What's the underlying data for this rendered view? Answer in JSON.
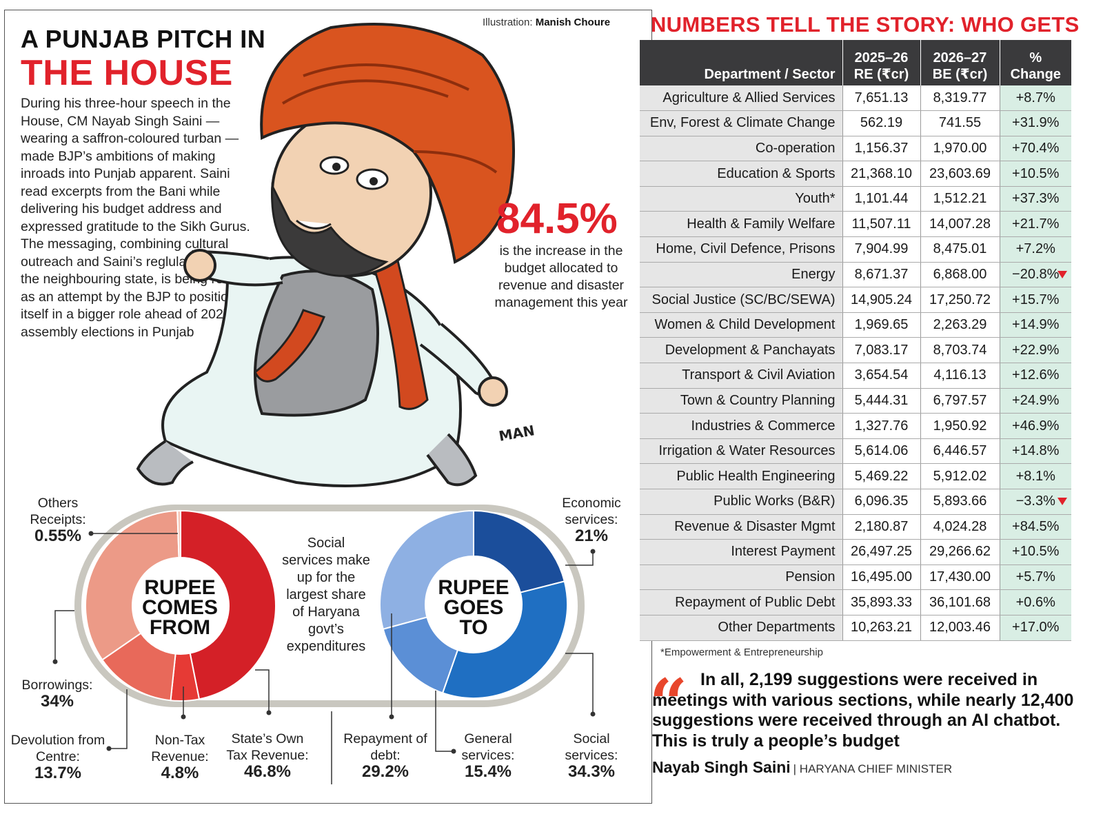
{
  "credit": {
    "prefix": "Illustration:",
    "name": "Manish Choure"
  },
  "headline": {
    "line1": "A PUNJAB PITCH IN",
    "line2": "THE HOUSE"
  },
  "intro": "During his three-hour speech in the House, CM Nayab Singh Saini — wearing a saffron-coloured turban — made BJP’s ambitions of making inroads into Punjab apparent. Saini read excerpts from the Bani while delivering his budget address and expressed gratitude to the Sikh Gurus. The messaging, combining cultural outreach and Saini’s reglular visits to the neighbouring state, is being read as an attempt by the BJP to position itself in a bigger role ahead of 2027 assembly elections in Punjab",
  "highlight": {
    "value": "84.5%",
    "caption": "is the increase in the budget allocated to revenue and disaster management this year"
  },
  "cartoon_signature": "MAN",
  "middle_note": "Social services make up for the largest share of Haryana govt’s expenditures",
  "colors": {
    "accent": "#e1222b",
    "comes_from": [
      "#d42027",
      "#e63a35",
      "#e8695a",
      "#ec9a87",
      "#f5c9bb"
    ],
    "goes_to": [
      "#1b4e9b",
      "#1f6fc2",
      "#5b8fd6",
      "#8eb0e3"
    ]
  },
  "chart_data": [
    {
      "type": "pie",
      "center_label": [
        "RUPEE",
        "COMES",
        "FROM"
      ],
      "slices": [
        {
          "label": "State’s Own Tax Revenue:",
          "value": 46.8,
          "display": "46.8%"
        },
        {
          "label": "Non-Tax Revenue:",
          "value": 4.8,
          "display": "4.8%"
        },
        {
          "label": "Devolution from Centre:",
          "value": 13.7,
          "display": "13.7%"
        },
        {
          "label": "Borrowings:",
          "value": 34,
          "display": "34%"
        },
        {
          "label": "Others Receipts:",
          "value": 0.55,
          "display": "0.55%"
        }
      ]
    },
    {
      "type": "pie",
      "center_label": [
        "RUPEE",
        "GOES",
        "TO"
      ],
      "slices": [
        {
          "label": "Economic services:",
          "value": 21,
          "display": "21%"
        },
        {
          "label": "Social services:",
          "value": 34.3,
          "display": "34.3%"
        },
        {
          "label": "General services:",
          "value": 15.4,
          "display": "15.4%"
        },
        {
          "label": "Repayment of debt:",
          "value": 29.2,
          "display": "29.2%"
        }
      ]
    },
    {
      "type": "table",
      "title": "NUMBERS TELL THE STORY: WHO GETS WHAT",
      "columns": [
        "Department / Sector",
        "2025–26 RE (₹cr)",
        "2026–27 BE (₹cr)",
        "% Change"
      ],
      "rows": [
        {
          "dept": "Agriculture & Allied Services",
          "re": "7,651.13",
          "be": "8,319.77",
          "chg": "+8.7%",
          "down": false
        },
        {
          "dept": "Env, Forest & Climate Change",
          "re": "562.19",
          "be": "741.55",
          "chg": "+31.9%",
          "down": false
        },
        {
          "dept": "Co-operation",
          "re": "1,156.37",
          "be": "1,970.00",
          "chg": "+70.4%",
          "down": false
        },
        {
          "dept": "Education & Sports",
          "re": "21,368.10",
          "be": "23,603.69",
          "chg": "+10.5%",
          "down": false
        },
        {
          "dept": "Youth*",
          "re": "1,101.44",
          "be": "1,512.21",
          "chg": "+37.3%",
          "down": false
        },
        {
          "dept": "Health & Family Welfare",
          "re": "11,507.11",
          "be": "14,007.28",
          "chg": "+21.7%",
          "down": false
        },
        {
          "dept": "Home, Civil Defence, Prisons",
          "re": "7,904.99",
          "be": "8,475.01",
          "chg": "+7.2%",
          "down": false
        },
        {
          "dept": "Energy",
          "re": "8,671.37",
          "be": "6,868.00",
          "chg": "−20.8%",
          "down": true
        },
        {
          "dept": "Social Justice (SC/BC/SEWA)",
          "re": "14,905.24",
          "be": "17,250.72",
          "chg": "+15.7%",
          "down": false
        },
        {
          "dept": "Women & Child Development",
          "re": "1,969.65",
          "be": "2,263.29",
          "chg": "+14.9%",
          "down": false
        },
        {
          "dept": "Development & Panchayats",
          "re": "7,083.17",
          "be": "8,703.74",
          "chg": "+22.9%",
          "down": false
        },
        {
          "dept": "Transport & Civil Aviation",
          "re": "3,654.54",
          "be": "4,116.13",
          "chg": "+12.6%",
          "down": false
        },
        {
          "dept": "Town & Country Planning",
          "re": "5,444.31",
          "be": "6,797.57",
          "chg": "+24.9%",
          "down": false
        },
        {
          "dept": "Industries & Commerce",
          "re": "1,327.76",
          "be": "1,950.92",
          "chg": "+46.9%",
          "down": false
        },
        {
          "dept": "Irrigation & Water Resources",
          "re": "5,614.06",
          "be": "6,446.57",
          "chg": "+14.8%",
          "down": false
        },
        {
          "dept": "Public Health Engineering",
          "re": "5,469.22",
          "be": "5,912.02",
          "chg": "+8.1%",
          "down": false
        },
        {
          "dept": "Public Works (B&R)",
          "re": "6,096.35",
          "be": "5,893.66",
          "chg": "−3.3%",
          "down": true
        },
        {
          "dept": "Revenue & Disaster Mgmt",
          "re": "2,180.87",
          "be": "4,024.28",
          "chg": "+84.5%",
          "down": false
        },
        {
          "dept": "Interest Payment",
          "re": "26,497.25",
          "be": "29,266.62",
          "chg": "+10.5%",
          "down": false
        },
        {
          "dept": "Pension",
          "re": "16,495.00",
          "be": "17,430.00",
          "chg": "+5.7%",
          "down": false
        },
        {
          "dept": "Repayment of Public Debt",
          "re": "35,893.33",
          "be": "36,101.68",
          "chg": "+0.6%",
          "down": false
        },
        {
          "dept": "Other Departments",
          "re": "10,263.21",
          "be": "12,003.46",
          "chg": "+17.0%",
          "down": false
        }
      ],
      "footnote": "*Empowerment & Entrepreneurship"
    }
  ],
  "quote": {
    "text": "In all, 2,199 suggestions were received in meetings with various sections, while nearly 12,400 suggestions were received through an AI chatbot. This is truly a people’s budget",
    "author": "Nayab Singh Saini",
    "role": "| HARYANA CHIEF MINISTER"
  }
}
